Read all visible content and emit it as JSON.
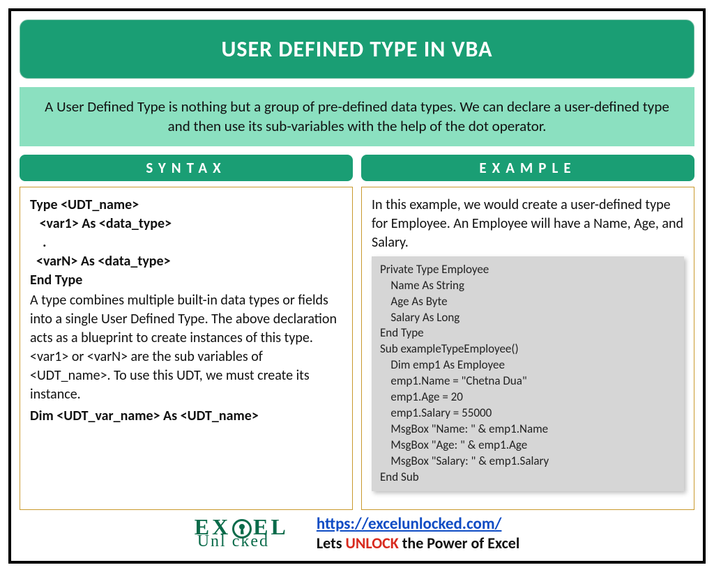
{
  "colors": {
    "primary_green": "#1a9e74",
    "light_green": "#8be0c0",
    "border_tan": "#c99a2e",
    "code_bg": "#d6d6d6",
    "link_blue": "#0f4cc4",
    "unlock_red": "#d82a1f",
    "logo_green": "#0a6b4a"
  },
  "title": "USER DEFINED TYPE IN VBA",
  "intro": "A User Defined Type is nothing but a group of pre-defined data types. We can declare a user-defined type and then use its sub-variables with the help of the dot operator.",
  "syntax": {
    "header": "SYNTAX",
    "code": "Type <UDT_name>\n   <var1> As <data_type>\n    .\n  <varN> As <data_type>\nEnd Type",
    "description": "A type combines multiple built-in data types or fields into a single User Defined Type. The above declaration acts as a blueprint to create instances of this type. <var1> or <varN> are the sub variables of <UDT_name>. To use this UDT, we must create its instance.",
    "dim_line": "Dim <UDT_var_name> As <UDT_name>"
  },
  "example": {
    "header": "EXAMPLE",
    "intro": "In this example, we would create a user-defined type for Employee. An Employee will have a Name, Age, and Salary.",
    "code": "Private Type Employee\n    Name As String\n    Age As Byte\n    Salary As Long\nEnd Type\nSub exampleTypeEmployee()\n    Dim emp1 As Employee\n    emp1.Name = \"Chetna Dua\"\n    emp1.Age = 20\n    emp1.Salary = 55000\n    MsgBox \"Name: \" & emp1.Name\n    MsgBox \"Age: \" & emp1.Age\n    MsgBox \"Salary: \" & emp1.Salary\nEnd Sub"
  },
  "footer": {
    "logo_top_left": "EX",
    "logo_top_right": "EL",
    "logo_bottom": "Unl   cked",
    "url": "https://excelunlocked.com/",
    "tagline_pre": "Lets ",
    "tagline_unlock": "UNLOCK",
    "tagline_post": " the Power of Excel"
  }
}
